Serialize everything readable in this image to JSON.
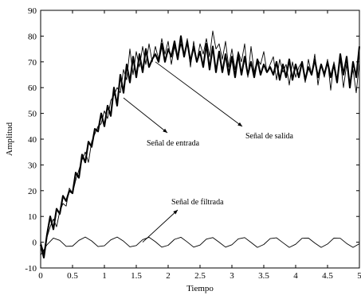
{
  "chart_data": {
    "type": "line",
    "xlabel": "Tiempo",
    "ylabel": "Amplitud",
    "xlim": [
      0,
      5
    ],
    "ylim": [
      -10,
      90
    ],
    "xticks": [
      0,
      0.5,
      1,
      1.5,
      2,
      2.5,
      3,
      3.5,
      4,
      4.5,
      5
    ],
    "xtick_labels": [
      "0",
      "0.5",
      "1",
      "1.5",
      "2",
      "2.5",
      "3",
      "3.5",
      "4",
      "4.5",
      "5"
    ],
    "yticks": [
      -10,
      0,
      10,
      20,
      30,
      40,
      50,
      60,
      70,
      80,
      90
    ],
    "ytick_labels": [
      "-10",
      "0",
      "10",
      "20",
      "30",
      "40",
      "50",
      "60",
      "70",
      "80",
      "90"
    ],
    "grid": false,
    "annotations": [
      {
        "text": "Señal de entrada",
        "points_to": [
          1.3,
          56
        ]
      },
      {
        "text": "Señal de salida",
        "points_to": [
          1.8,
          70
        ]
      },
      {
        "text": "Señal de filtrada",
        "points_to": [
          1.6,
          0
        ]
      }
    ],
    "series": [
      {
        "style": "thin",
        "x": [
          0,
          0.05,
          0.1,
          0.15,
          0.2,
          0.25,
          0.3,
          0.35,
          0.4,
          0.45,
          0.5,
          0.55,
          0.6,
          0.65,
          0.7,
          0.75,
          0.8,
          0.85,
          0.9,
          0.95,
          1.0,
          1.05,
          1.1,
          1.15,
          1.2,
          1.25,
          1.3,
          1.35,
          1.4,
          1.45,
          1.5,
          1.55,
          1.6,
          1.65,
          1.7,
          1.75,
          1.8,
          1.85,
          1.9,
          1.95,
          2.0,
          2.05,
          2.1,
          2.15,
          2.2,
          2.25,
          2.3,
          2.35,
          2.4,
          2.45,
          2.5,
          2.55,
          2.6,
          2.65,
          2.7,
          2.75,
          2.8,
          2.85,
          2.9,
          2.95,
          3.0,
          3.05,
          3.1,
          3.15,
          3.2,
          3.25,
          3.3,
          3.35,
          3.4,
          3.45,
          3.5,
          3.55,
          3.6,
          3.65,
          3.7,
          3.75,
          3.8,
          3.85,
          3.9,
          3.95,
          4.0,
          4.05,
          4.1,
          4.15,
          4.2,
          4.25,
          4.3,
          4.35,
          4.4,
          4.45,
          4.5,
          4.55,
          4.6,
          4.65,
          4.7,
          4.75,
          4.8,
          4.85,
          4.9,
          4.95,
          5.0
        ],
        "values": [
          0,
          -4,
          2,
          6,
          9,
          6,
          12,
          15,
          14,
          21,
          19,
          24,
          28,
          32,
          35,
          31,
          39,
          42,
          45,
          46,
          51,
          48,
          55,
          57,
          60,
          58,
          67,
          63,
          75,
          65,
          74,
          68,
          76,
          69,
          77,
          70,
          76,
          71,
          79,
          73,
          78,
          69,
          76,
          71,
          77,
          72,
          79,
          68,
          78,
          70,
          77,
          73,
          79,
          72,
          82,
          75,
          77,
          71,
          78,
          68,
          75,
          67,
          74,
          70,
          77,
          64,
          76,
          66,
          71,
          69,
          74,
          66,
          69,
          72,
          63,
          71,
          66,
          69,
          61,
          70,
          64,
          68,
          70,
          62,
          71,
          65,
          73,
          61,
          69,
          64,
          71,
          59,
          70,
          63,
          71,
          60,
          69,
          61,
          67,
          58,
          70
        ]
      },
      {
        "style": "thick",
        "x": [
          0,
          0.05,
          0.1,
          0.15,
          0.2,
          0.25,
          0.3,
          0.35,
          0.4,
          0.45,
          0.5,
          0.55,
          0.6,
          0.65,
          0.7,
          0.75,
          0.8,
          0.85,
          0.9,
          0.95,
          1.0,
          1.05,
          1.1,
          1.15,
          1.2,
          1.25,
          1.3,
          1.35,
          1.4,
          1.45,
          1.5,
          1.55,
          1.6,
          1.65,
          1.7,
          1.75,
          1.8,
          1.85,
          1.9,
          1.95,
          2.0,
          2.05,
          2.1,
          2.15,
          2.2,
          2.25,
          2.3,
          2.35,
          2.4,
          2.45,
          2.5,
          2.55,
          2.6,
          2.65,
          2.7,
          2.75,
          2.8,
          2.85,
          2.9,
          2.95,
          3.0,
          3.05,
          3.1,
          3.15,
          3.2,
          3.25,
          3.3,
          3.35,
          3.4,
          3.45,
          3.5,
          3.55,
          3.6,
          3.65,
          3.7,
          3.75,
          3.8,
          3.85,
          3.9,
          3.95,
          4.0,
          4.05,
          4.1,
          4.15,
          4.2,
          4.25,
          4.3,
          4.35,
          4.4,
          4.45,
          4.5,
          4.55,
          4.6,
          4.65,
          4.7,
          4.75,
          4.8,
          4.85,
          4.9,
          4.95,
          5.0
        ],
        "values": [
          -1,
          -6,
          3,
          10,
          5,
          13,
          11,
          18,
          16,
          20,
          19,
          27,
          25,
          34,
          31,
          39,
          37,
          44,
          43,
          50,
          45,
          53,
          49,
          60,
          53,
          65,
          58,
          69,
          62,
          72,
          64,
          73,
          66,
          75,
          68,
          71,
          73,
          70,
          77,
          70,
          75,
          72,
          78,
          71,
          80,
          72,
          78,
          70,
          76,
          70,
          74,
          68,
          77,
          67,
          76,
          66,
          74,
          66,
          73,
          65,
          72,
          64,
          73,
          65,
          72,
          65,
          70,
          64,
          71,
          65,
          69,
          66,
          68,
          65,
          70,
          63,
          69,
          64,
          71,
          63,
          69,
          64,
          70,
          63,
          68,
          65,
          71,
          64,
          69,
          65,
          70,
          64,
          69,
          62,
          73,
          65,
          72,
          60,
          70,
          64,
          76
        ]
      },
      {
        "style": "thin",
        "x": [
          0,
          0.1,
          0.2,
          0.3,
          0.4,
          0.5,
          0.6,
          0.7,
          0.8,
          0.9,
          1.0,
          1.1,
          1.2,
          1.3,
          1.4,
          1.5,
          1.6,
          1.7,
          1.8,
          1.9,
          2.0,
          2.1,
          2.2,
          2.3,
          2.4,
          2.5,
          2.6,
          2.7,
          2.8,
          2.9,
          3.0,
          3.1,
          3.2,
          3.3,
          3.4,
          3.5,
          3.6,
          3.7,
          3.8,
          3.9,
          4.0,
          4.1,
          4.2,
          4.3,
          4.4,
          4.5,
          4.6,
          4.7,
          4.8,
          4.9,
          5.0
        ],
        "values": [
          -5,
          -1,
          1.6,
          0.7,
          -1.6,
          -1.5,
          0.7,
          2.0,
          0.5,
          -1.7,
          -1.4,
          0.9,
          2.0,
          0.4,
          -1.8,
          -1.3,
          1.0,
          1.9,
          0.2,
          -1.9,
          -1.2,
          1.1,
          1.9,
          0.1,
          -1.9,
          -1.1,
          1.2,
          1.8,
          0.0,
          -1.9,
          -1.0,
          1.3,
          1.8,
          -0.1,
          -2.0,
          -0.9,
          1.4,
          1.7,
          -0.2,
          -2.0,
          -0.8,
          1.5,
          1.6,
          -0.3,
          -2.0,
          -0.7,
          1.6,
          1.5,
          -0.5,
          -2.0,
          -0.6
        ]
      }
    ]
  }
}
